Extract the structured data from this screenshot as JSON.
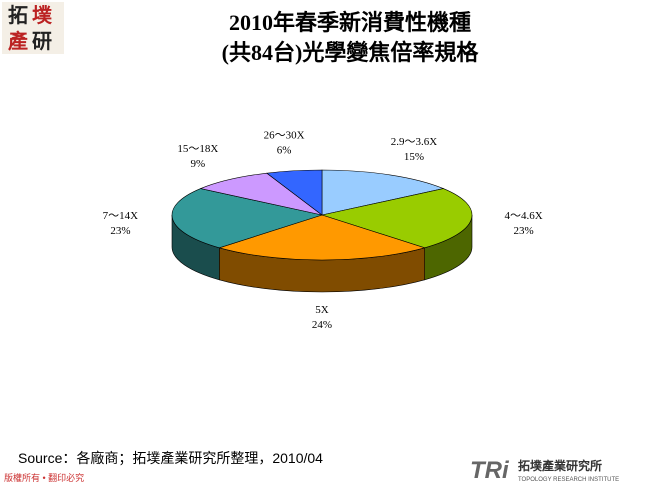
{
  "chart_data": {
    "type": "pie",
    "title": [
      "2010年春季新消費性機種",
      "(共84台)光學變焦倍率規格"
    ],
    "categories": [
      "2.9～3.6X",
      "4～4.6X",
      "5X",
      "7～14X",
      "15～18X",
      "26～30X"
    ],
    "values": [
      15,
      23,
      24,
      23,
      9,
      6
    ],
    "value_labels": [
      "15%",
      "23%",
      "24%",
      "23%",
      "9%",
      "6%"
    ],
    "colors": [
      "#99ccff",
      "#99cc00",
      "#ff9900",
      "#339999",
      "#cc99ff",
      "#3366ff"
    ],
    "side_colors": [
      "#5c7a99",
      "#4d6600",
      "#804c00",
      "#1a4d4d",
      "#664c80",
      "#1a3380"
    ]
  },
  "page": {
    "logo": [
      "拓",
      "墣",
      "產",
      "研"
    ],
    "source": "Source：各廠商；拓墣產業研究所整理，2010/04",
    "copyright": "版權所有 • 翻印必究",
    "brand": "TRi",
    "brand_name": "拓墣產業研究所",
    "brand_en": "TOPOLOGY RESEARCH INSTITUTE"
  }
}
